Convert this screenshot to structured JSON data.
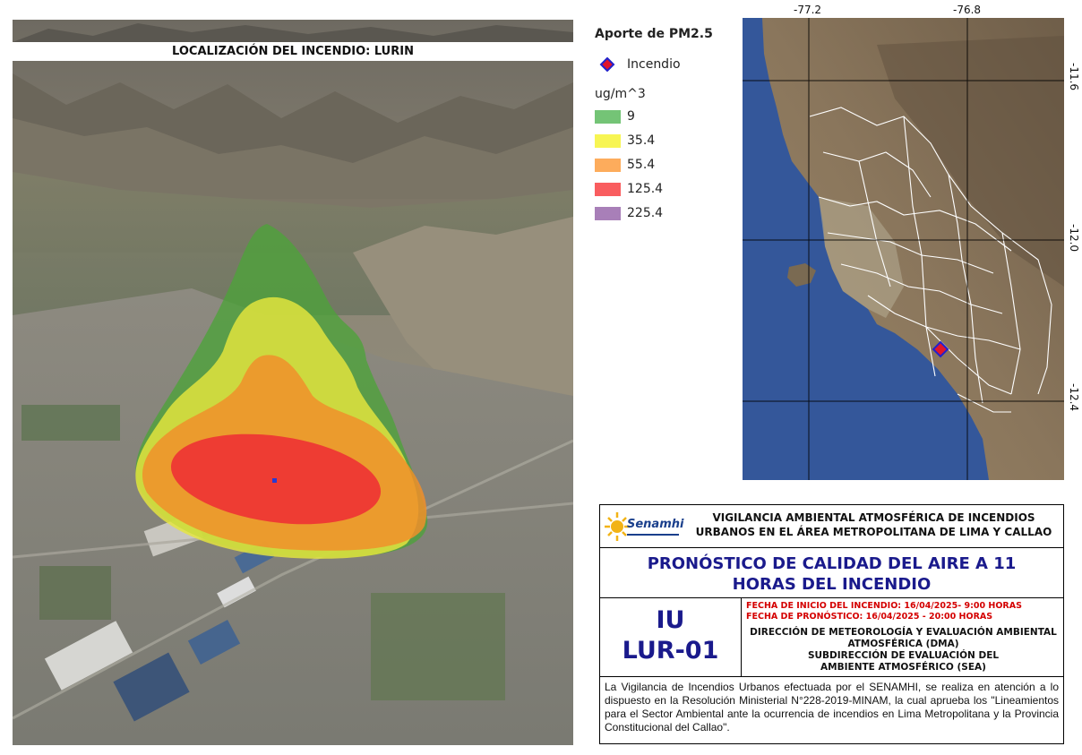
{
  "view3d": {
    "title": "LOCALIZACIÓN DEL INCENDIO: LURIN"
  },
  "legend": {
    "title": "Aporte de PM2.5",
    "marker_label": "Incendio",
    "unit": "ug/m^3",
    "items": [
      {
        "label": "9",
        "color": "#74c476"
      },
      {
        "label": "35.4",
        "color": "#f7f553"
      },
      {
        "label": "55.4",
        "color": "#fdac5c"
      },
      {
        "label": "125.4",
        "color": "#f95d5f"
      },
      {
        "label": "225.4",
        "color": "#a87fb8"
      }
    ]
  },
  "map": {
    "lon_labels": [
      "-77.2",
      "-76.8"
    ],
    "lat_labels": [
      "-11.6",
      "-12.0",
      "-12.4"
    ]
  },
  "info": {
    "org_logo_text": "Senamhi",
    "header": [
      "VIGILANCIA AMBIENTAL ATMOSFÉRICA DE INCENDIOS",
      "URBANOS EN EL ÁREA METROPOLITANA DE LIMA Y CALLAO"
    ],
    "title": [
      "PRONÓSTICO DE CALIDAD DEL AIRE A 11",
      "HORAS DEL INCENDIO"
    ],
    "code": [
      "IU",
      "LUR-01"
    ],
    "dates": [
      "FECHA DE INICIO DEL INCENDIO: 16/04/2025- 9:00 HORAS",
      "FECHA DE PRONÓSTICO: 16/04/2025 - 20:00 HORAS"
    ],
    "dept": [
      "DIRECCIÓN DE METEOROLOGÍA Y EVALUACIÓN AMBIENTAL",
      "ATMOSFÉRICA (DMA)",
      "SUBDIRECCIÓN DE EVALUACIÓN DEL",
      "AMBIENTE ATMOSFÉRICO (SEA)"
    ],
    "body": "La Vigilancia de Incendios Urbanos efectuada por el SENAMHI, se realiza en atención a lo dispuesto en la Resolución Ministerial N°228-2019-MINAM, la cual aprueba los \"Lineamientos para el Sector Ambiental ante la ocurrencia de incendios en Lima Metropolitana y la Provincia Constitucional del Callao\"."
  },
  "colors": {
    "title_blue": "#1a1a8c",
    "date_red": "#d40000",
    "incendio_fill": "#e0142c",
    "incendio_stroke": "#2222cc"
  }
}
